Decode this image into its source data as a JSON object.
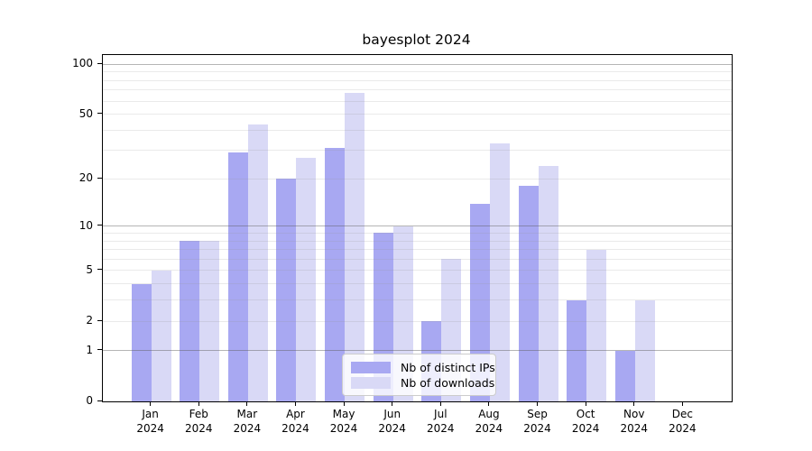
{
  "chart_data": {
    "type": "bar",
    "title": "bayesplot 2024",
    "categories": [
      "Jan",
      "Feb",
      "Mar",
      "Apr",
      "May",
      "Jun",
      "Jul",
      "Aug",
      "Sep",
      "Oct",
      "Nov",
      "Dec"
    ],
    "category_year": "2024",
    "series": [
      {
        "name": "Nb of distinct IPs",
        "color": "#a8a8f2",
        "values": [
          4,
          8,
          29,
          20,
          31,
          9,
          2,
          14,
          18,
          3,
          1,
          0
        ]
      },
      {
        "name": "Nb of downloads",
        "color": "#d9d9f6",
        "values": [
          5,
          8,
          43,
          27,
          67,
          10,
          6,
          33,
          24,
          7,
          3,
          0
        ]
      }
    ],
    "xlabel": "",
    "ylabel": "",
    "yscale": "log1p",
    "ylim": [
      0,
      113.5
    ],
    "yticks": [
      0,
      1,
      2,
      5,
      10,
      20,
      50,
      100
    ],
    "major_gridlines": [
      1,
      10,
      100
    ],
    "minor_gridlines": [
      2,
      3,
      4,
      5,
      6,
      7,
      8,
      9,
      20,
      30,
      40,
      50,
      60,
      70,
      80,
      90
    ],
    "grid": true,
    "legend_position": "lower center"
  },
  "colors": {
    "major_grid": "rgba(90,90,90,0.45)",
    "minor_grid": "rgba(150,150,150,0.20)",
    "spine": "#000000",
    "background": "#ffffff",
    "legend_border": "#cccccc",
    "legend_background": "rgba(255,255,255,0.8)"
  }
}
